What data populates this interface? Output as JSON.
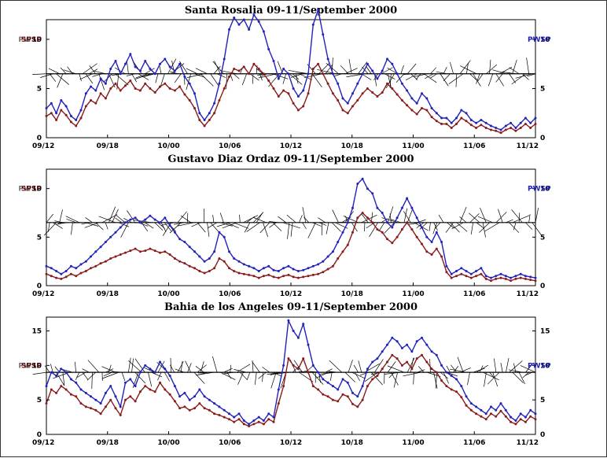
{
  "colors": {
    "series_a": "#2222bb",
    "series_b": "#8b1a1a",
    "vectors": "#000000",
    "frame": "#000000"
  },
  "chart_data": [
    {
      "type": "line",
      "title": "Santa Rosalia  09-11/September 2000",
      "ylabel_left": "SPSP",
      "ylabel_left_overlay": "PWSP",
      "ylabel_right": "PWSP",
      "ylim": [
        0,
        12
      ],
      "yticks": [
        0,
        5,
        10
      ],
      "right_yticks": [
        0,
        5,
        10
      ],
      "xtick_labels": [
        "09/12",
        "09/18",
        "10/00",
        "10/06",
        "10/12",
        "10/18",
        "11/00",
        "11/06",
        "11/12"
      ],
      "vector_baseline": 6.5,
      "series": [
        {
          "name": "PWSP",
          "color": "#2222bb",
          "values": [
            3.0,
            3.5,
            2.5,
            3.8,
            3.2,
            2.2,
            1.8,
            2.8,
            4.5,
            5.2,
            4.8,
            6.0,
            5.5,
            7.0,
            7.8,
            6.5,
            7.5,
            8.5,
            7.2,
            6.8,
            7.8,
            7.0,
            6.5,
            7.5,
            8.0,
            7.2,
            6.8,
            7.5,
            6.2,
            5.5,
            4.5,
            2.5,
            1.8,
            2.5,
            3.5,
            5.5,
            8.0,
            11.0,
            12.2,
            11.5,
            12.0,
            11.0,
            12.5,
            11.8,
            10.8,
            9.0,
            7.8,
            6.0,
            7.0,
            6.5,
            5.0,
            4.2,
            4.8,
            6.5,
            11.5,
            13.0,
            10.5,
            8.0,
            6.5,
            5.5,
            4.0,
            3.5,
            4.5,
            5.5,
            6.5,
            7.5,
            6.8,
            6.0,
            6.8,
            8.0,
            7.5,
            6.5,
            5.5,
            4.8,
            4.0,
            3.5,
            4.5,
            4.0,
            3.0,
            2.5,
            2.0,
            2.0,
            1.5,
            2.0,
            2.8,
            2.5,
            1.8,
            1.5,
            1.8,
            1.5,
            1.2,
            1.0,
            0.8,
            1.2,
            1.5,
            1.0,
            1.5,
            2.0,
            1.5,
            2.0
          ]
        },
        {
          "name": "SPSP",
          "color": "#8b1a1a",
          "values": [
            2.2,
            2.5,
            1.8,
            2.8,
            2.3,
            1.6,
            1.2,
            2.0,
            3.2,
            3.8,
            3.5,
            4.5,
            4.0,
            5.0,
            5.5,
            4.8,
            5.3,
            5.8,
            5.0,
            4.8,
            5.5,
            5.0,
            4.6,
            5.2,
            5.5,
            5.0,
            4.8,
            5.2,
            4.4,
            3.8,
            3.0,
            1.8,
            1.2,
            1.8,
            2.5,
            3.8,
            5.0,
            6.2,
            7.0,
            6.8,
            7.2,
            6.5,
            7.5,
            7.0,
            6.5,
            5.8,
            5.0,
            4.2,
            4.8,
            4.5,
            3.5,
            2.8,
            3.2,
            4.5,
            7.0,
            7.5,
            6.5,
            5.5,
            4.5,
            3.8,
            2.8,
            2.5,
            3.2,
            3.8,
            4.5,
            5.0,
            4.6,
            4.2,
            4.6,
            5.5,
            5.0,
            4.4,
            3.8,
            3.3,
            2.8,
            2.4,
            3.0,
            2.8,
            2.1,
            1.7,
            1.4,
            1.4,
            1.0,
            1.4,
            2.0,
            1.7,
            1.3,
            1.0,
            1.3,
            1.0,
            0.8,
            0.7,
            0.5,
            0.8,
            1.0,
            0.7,
            1.0,
            1.4,
            1.0,
            1.4
          ]
        }
      ]
    },
    {
      "type": "line",
      "title": "Gustavo Diaz Ordaz  09-11/September 2000",
      "ylabel_left": "SPSP",
      "ylabel_left_overlay": "PWSP",
      "ylabel_right": "PWSP",
      "ylim": [
        0,
        12
      ],
      "yticks": [
        0,
        5,
        10
      ],
      "right_yticks": [
        0,
        5,
        10
      ],
      "xtick_labels": [
        "09/12",
        "09/18",
        "10/00",
        "10/06",
        "10/12",
        "10/18",
        "11/00",
        "11/06",
        "11/12"
      ],
      "vector_baseline": 6.5,
      "series": [
        {
          "name": "PWSP",
          "color": "#2222bb",
          "values": [
            2.0,
            1.8,
            1.5,
            1.2,
            1.5,
            2.0,
            1.8,
            2.2,
            2.5,
            3.0,
            3.5,
            4.0,
            4.5,
            5.0,
            5.5,
            6.0,
            6.5,
            6.8,
            7.0,
            6.5,
            6.8,
            7.2,
            6.8,
            6.5,
            7.0,
            6.2,
            5.5,
            4.8,
            4.5,
            4.0,
            3.5,
            3.0,
            2.5,
            2.8,
            3.5,
            5.5,
            5.0,
            3.5,
            2.8,
            2.5,
            2.2,
            2.0,
            1.8,
            1.5,
            1.8,
            2.0,
            1.6,
            1.5,
            1.8,
            2.0,
            1.7,
            1.5,
            1.6,
            1.8,
            2.0,
            2.2,
            2.5,
            3.0,
            3.5,
            4.5,
            5.5,
            6.5,
            8.0,
            10.5,
            11.0,
            10.0,
            9.5,
            8.0,
            7.5,
            6.5,
            6.0,
            7.0,
            8.0,
            9.0,
            8.0,
            7.0,
            6.0,
            5.0,
            4.5,
            5.5,
            4.5,
            2.0,
            1.2,
            1.5,
            1.8,
            1.5,
            1.2,
            1.5,
            1.8,
            1.0,
            0.8,
            1.0,
            1.2,
            1.0,
            0.8,
            1.0,
            1.2,
            1.0,
            0.9,
            0.8
          ]
        },
        {
          "name": "SPSP",
          "color": "#8b1a1a",
          "values": [
            1.2,
            1.0,
            0.8,
            0.7,
            0.9,
            1.2,
            1.0,
            1.3,
            1.5,
            1.8,
            2.0,
            2.3,
            2.5,
            2.8,
            3.0,
            3.2,
            3.4,
            3.6,
            3.8,
            3.5,
            3.6,
            3.8,
            3.6,
            3.4,
            3.5,
            3.2,
            2.8,
            2.5,
            2.3,
            2.0,
            1.8,
            1.5,
            1.3,
            1.5,
            1.8,
            2.8,
            2.5,
            1.8,
            1.5,
            1.3,
            1.2,
            1.1,
            1.0,
            0.8,
            1.0,
            1.1,
            0.9,
            0.8,
            1.0,
            1.1,
            0.9,
            0.8,
            0.9,
            1.0,
            1.1,
            1.2,
            1.4,
            1.7,
            2.0,
            2.8,
            3.5,
            4.2,
            5.5,
            7.0,
            7.5,
            7.0,
            6.5,
            5.8,
            5.5,
            4.8,
            4.4,
            5.0,
            5.8,
            6.5,
            5.8,
            5.0,
            4.3,
            3.5,
            3.2,
            3.8,
            3.0,
            1.4,
            0.8,
            1.0,
            1.2,
            1.0,
            0.8,
            1.0,
            1.2,
            0.7,
            0.5,
            0.7,
            0.8,
            0.7,
            0.5,
            0.7,
            0.8,
            0.7,
            0.6,
            0.5
          ]
        }
      ]
    },
    {
      "type": "line",
      "title": "Bahia de los Angeles 09-11/September 2000",
      "ylabel_left": "SPSP",
      "ylabel_left_overlay": "PWSP",
      "ylabel_right": "PWSP",
      "ylim": [
        0,
        17
      ],
      "yticks": [
        0,
        5,
        10,
        15
      ],
      "right_yticks": [
        0,
        5,
        10,
        15
      ],
      "xtick_labels": [
        "09/12",
        "09/18",
        "10/00",
        "10/06",
        "10/12",
        "10/18",
        "11/00",
        "11/06",
        "11/12"
      ],
      "vector_baseline": 9,
      "series": [
        {
          "name": "PWSP",
          "color": "#2222bb",
          "values": [
            7.0,
            9.0,
            8.5,
            9.5,
            9.0,
            8.0,
            7.5,
            6.5,
            6.0,
            5.5,
            5.0,
            4.5,
            6.0,
            7.0,
            5.5,
            4.0,
            7.5,
            8.0,
            7.0,
            9.0,
            10.0,
            9.5,
            9.0,
            10.5,
            9.5,
            8.5,
            7.0,
            5.5,
            6.0,
            5.0,
            5.5,
            6.5,
            5.5,
            5.0,
            4.5,
            4.0,
            3.5,
            3.0,
            2.5,
            3.0,
            2.0,
            1.5,
            2.0,
            2.5,
            2.0,
            3.0,
            2.5,
            6.5,
            10.0,
            16.5,
            15.0,
            14.0,
            16.0,
            13.0,
            10.0,
            9.0,
            8.0,
            7.5,
            7.0,
            6.5,
            8.0,
            7.5,
            6.0,
            5.5,
            7.0,
            9.5,
            10.5,
            11.0,
            12.0,
            13.0,
            14.0,
            13.5,
            12.5,
            13.0,
            12.0,
            13.5,
            14.0,
            13.0,
            12.0,
            11.5,
            10.0,
            9.0,
            8.5,
            8.0,
            7.0,
            5.5,
            4.5,
            4.0,
            3.5,
            3.0,
            4.0,
            3.5,
            4.5,
            3.5,
            2.5,
            2.0,
            3.0,
            2.5,
            3.5,
            3.0
          ]
        },
        {
          "name": "SPSP",
          "color": "#8b1a1a",
          "values": [
            4.5,
            6.5,
            6.0,
            7.0,
            6.5,
            5.8,
            5.5,
            4.5,
            4.0,
            3.8,
            3.5,
            3.0,
            4.0,
            5.0,
            3.8,
            2.8,
            5.0,
            5.5,
            4.8,
            6.2,
            7.0,
            6.5,
            6.2,
            7.5,
            6.5,
            5.8,
            4.8,
            3.8,
            4.0,
            3.5,
            3.8,
            4.5,
            3.8,
            3.5,
            3.0,
            2.8,
            2.5,
            2.2,
            1.8,
            2.2,
            1.5,
            1.2,
            1.5,
            1.8,
            1.5,
            2.2,
            1.8,
            4.5,
            7.0,
            11.0,
            10.0,
            9.5,
            11.0,
            9.0,
            7.0,
            6.5,
            5.8,
            5.5,
            5.0,
            4.8,
            5.8,
            5.5,
            4.4,
            4.0,
            5.0,
            7.0,
            8.0,
            8.5,
            9.5,
            10.5,
            11.5,
            11.0,
            10.0,
            10.5,
            9.5,
            11.0,
            11.5,
            10.5,
            9.5,
            9.0,
            7.8,
            7.0,
            6.5,
            6.2,
            5.4,
            4.2,
            3.5,
            3.0,
            2.6,
            2.2,
            3.0,
            2.6,
            3.4,
            2.6,
            1.8,
            1.5,
            2.2,
            1.8,
            2.6,
            2.2
          ]
        }
      ]
    }
  ]
}
